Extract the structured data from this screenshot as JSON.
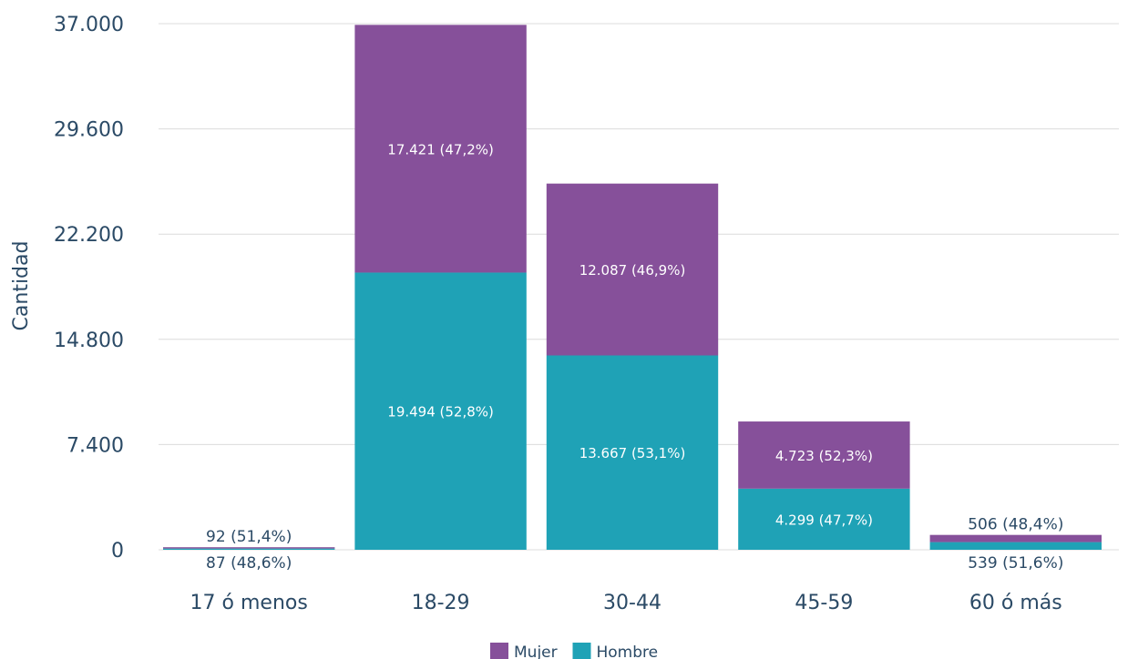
{
  "chart_data": {
    "type": "bar",
    "stacked": true,
    "categories": [
      "17 ó menos",
      "18-29",
      "30-44",
      "45-59",
      "60 ó más"
    ],
    "series": [
      {
        "name": "Hombre",
        "color": "#1fa2b6",
        "values": [
          87,
          19494,
          13667,
          4299,
          539
        ],
        "labels": [
          "87 (48,6%)",
          "19.494  (52,8%)",
          "13.667  (53,1%)",
          "4.299  (47,7%)",
          "539 (51,6%)"
        ]
      },
      {
        "name": "Mujer",
        "color": "#86509a",
        "values": [
          92,
          17421,
          12087,
          4723,
          506
        ],
        "labels": [
          "92 (51,4%)",
          "17.421  (47,2%)",
          "12.087  (46,9%)",
          "4.723  (52,3%)",
          "506 (48,4%)"
        ]
      }
    ],
    "ylabel": "Cantidad",
    "xlabel": "",
    "ylim": [
      0,
      37000
    ],
    "yticks": [
      0,
      7400,
      14800,
      22200,
      29600,
      37000
    ],
    "ytick_labels": [
      "0",
      "7.400",
      "14.800",
      "22.200",
      "29.600",
      "37.000"
    ],
    "grid": true,
    "legend_position": "bottom-center",
    "legend_order": [
      "Mujer",
      "Hombre"
    ]
  }
}
